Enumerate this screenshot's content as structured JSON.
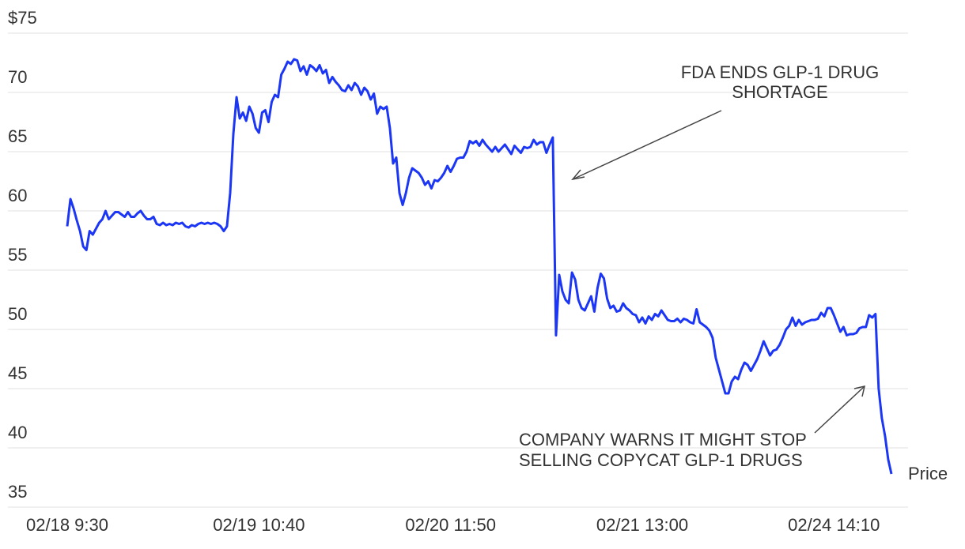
{
  "chart_data": {
    "type": "line",
    "series": [
      {
        "name": "Price",
        "color": "#1c36f5",
        "values": [
          58.7,
          61,
          60.2,
          59.2,
          58.3,
          57,
          56.7,
          58.3,
          58,
          58.5,
          59,
          59.3,
          60,
          59.3,
          59.6,
          59.9,
          59.9,
          59.7,
          59.5,
          59.9,
          59.5,
          59.5,
          59.8,
          60,
          59.6,
          59.3,
          59.3,
          59.5,
          58.9,
          58.8,
          59,
          58.8,
          58.9,
          58.8,
          59,
          58.9,
          59,
          58.7,
          58.6,
          58.8,
          58.7,
          58.9,
          59,
          58.9,
          59,
          58.9,
          59,
          58.9,
          58.7,
          58.3,
          58.7,
          61.5,
          66.5,
          69.6,
          67.8,
          68.3,
          67.6,
          68.8,
          68.2,
          67,
          66.6,
          68.3,
          68.5,
          67.5,
          69.2,
          69.8,
          69.6,
          71.5,
          72,
          72.6,
          72.4,
          72.8,
          72.7,
          71.8,
          72.2,
          71.5,
          72.3,
          72.1,
          71.8,
          72.3,
          71.6,
          71.9,
          70.8,
          71.3,
          70.9,
          70.6,
          70.2,
          70.1,
          70.6,
          70.2,
          70.8,
          70.5,
          69.8,
          70.4,
          70.1,
          69.4,
          69.9,
          68.2,
          68.8,
          68.6,
          68.8,
          67,
          64,
          64.5,
          61.5,
          60.5,
          61.5,
          62.8,
          63.6,
          63.4,
          63.2,
          62.8,
          62.2,
          62.5,
          61.9,
          62.6,
          62.5,
          62.8,
          63.2,
          63.8,
          63.3,
          63.8,
          64.4,
          64.5,
          64.5,
          65,
          65.9,
          65.7,
          65.9,
          65.5,
          66,
          65.6,
          65.3,
          65,
          65.4,
          65,
          65.3,
          65.6,
          65.2,
          64.8,
          65.5,
          65.2,
          64.9,
          65.4,
          65.3,
          65.4,
          66,
          65.6,
          65.8,
          65.8,
          64.9,
          65.6,
          66.2,
          49.5,
          54.6,
          53.2,
          52.5,
          52.2,
          54.8,
          54.2,
          52.5,
          51.8,
          51.6,
          52.2,
          52.8,
          51.5,
          53.5,
          54.7,
          54.3,
          52.6,
          51.8,
          52,
          51.5,
          51.6,
          52.2,
          51.8,
          51.6,
          51.3,
          51.2,
          50.6,
          51,
          50.5,
          51.1,
          50.8,
          51.3,
          51.1,
          51.6,
          51.2,
          50.8,
          50.7,
          50.7,
          50.9,
          50.6,
          50.9,
          50.8,
          50.6,
          50.5,
          51.7,
          50.6,
          50.4,
          50.2,
          49.9,
          49.3,
          47.6,
          46.6,
          45.6,
          44.6,
          44.6,
          45.6,
          46,
          45.8,
          46.6,
          47.2,
          47,
          46.5,
          47,
          47.5,
          48.2,
          49,
          48.4,
          47.8,
          48.2,
          48.3,
          48.7,
          49.3,
          50,
          50.3,
          51,
          50.3,
          50.8,
          50.4,
          50.6,
          50.7,
          50.8,
          50.8,
          50.9,
          51.4,
          51.1,
          51.8,
          51.8,
          51.2,
          50.5,
          49.8,
          50.2,
          49.5,
          49.6,
          49.6,
          49.7,
          50.1,
          50.2,
          50.2,
          51.2,
          51,
          51.3,
          45,
          42.5,
          41,
          39,
          37.8
        ]
      }
    ],
    "xlim": [
      0,
      258
    ],
    "xticks": [
      {
        "value": 0,
        "label": "02/18 9:30"
      },
      {
        "value": 60,
        "label": "02/19 10:40"
      },
      {
        "value": 120,
        "label": "02/20 11:50"
      },
      {
        "value": 180,
        "label": "02/21 13:00"
      },
      {
        "value": 240,
        "label": "02/24 14:10"
      }
    ],
    "ylim": [
      35,
      75
    ],
    "yticks": [
      35,
      40,
      45,
      50,
      55,
      60,
      65,
      70,
      {
        "value": 75,
        "label": "$75"
      }
    ],
    "grid": true,
    "annotations": [
      {
        "lines": [
          "FDA ENDS GLP-1 DRUG",
          "SHORTAGE"
        ]
      },
      {
        "lines": [
          "COMPANY WARNS IT MIGHT STOP",
          "SELLING COPYCAT GLP-1 DRUGS"
        ]
      }
    ]
  }
}
